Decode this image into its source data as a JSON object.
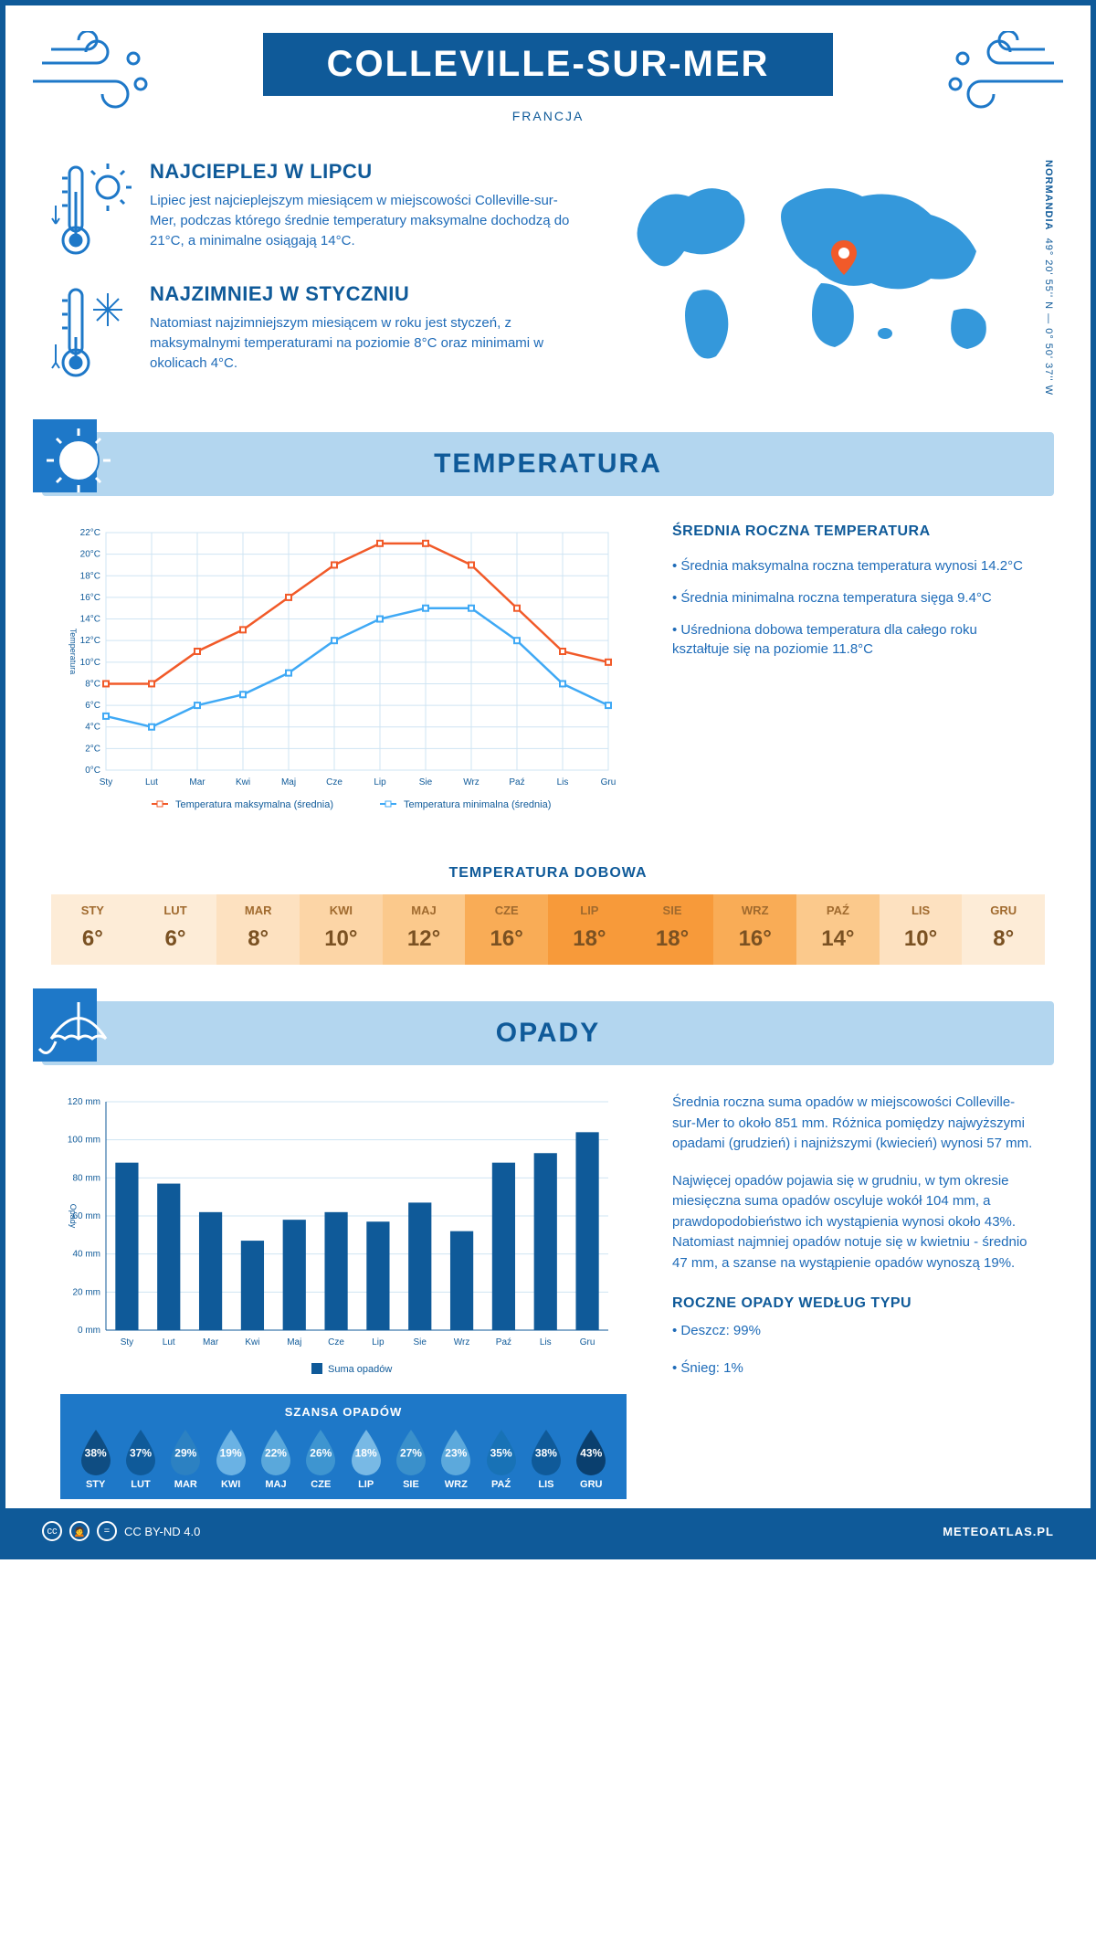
{
  "header": {
    "title": "COLLEVILLE-SUR-MER",
    "subtitle": "FRANCJA"
  },
  "location": {
    "coords": "49° 20' 55'' N — 0° 50' 37'' W",
    "region": "NORMANDIA"
  },
  "intro_hot": {
    "title": "NAJCIEPLEJ W LIPCU",
    "body": "Lipiec jest najcieplejszym miesiącem w miejscowości Colleville-sur-Mer, podczas którego średnie temperatury maksymalne dochodzą do 21°C, a minimalne osiągają 14°C."
  },
  "intro_cold": {
    "title": "NAJZIMNIEJ W STYCZNIU",
    "body": "Natomiast najzimniejszym miesiącem w roku jest styczeń, z maksymalnymi temperaturami na poziomie 8°C oraz minimami w okolicach 4°C."
  },
  "temp_section_title": "TEMPERATURA",
  "temp_chart": {
    "ylabel": "Temperatura",
    "months": [
      "Sty",
      "Lut",
      "Mar",
      "Kwi",
      "Maj",
      "Cze",
      "Lip",
      "Sie",
      "Wrz",
      "Paź",
      "Lis",
      "Gru"
    ],
    "max_vals": [
      8,
      8,
      11,
      13,
      16,
      19,
      21,
      21,
      19,
      15,
      11,
      10
    ],
    "min_vals": [
      5,
      4,
      6,
      7,
      9,
      12,
      14,
      15,
      15,
      12,
      8,
      6
    ],
    "max_color": "#f15a29",
    "min_color": "#3fa9f5",
    "y_min": 0,
    "y_max": 22,
    "y_step": 2,
    "grid_color": "#cfe4f3",
    "legend_max": "Temperatura maksymalna (średnia)",
    "legend_min": "Temperatura minimalna (średnia)"
  },
  "temp_info": {
    "heading": "ŚREDNIA ROCZNA TEMPERATURA",
    "b1": "• Średnia maksymalna roczna temperatura wynosi 14.2°C",
    "b2": "• Średnia minimalna roczna temperatura sięga 9.4°C",
    "b3": "• Uśredniona dobowa temperatura dla całego roku kształtuje się na poziomie 11.8°C"
  },
  "daily_title": "TEMPERATURA DOBOWA",
  "daily": {
    "months": [
      "STY",
      "LUT",
      "MAR",
      "KWI",
      "MAJ",
      "CZE",
      "LIP",
      "SIE",
      "WRZ",
      "PAŹ",
      "LIS",
      "GRU"
    ],
    "vals": [
      "6°",
      "6°",
      "8°",
      "10°",
      "12°",
      "16°",
      "18°",
      "18°",
      "16°",
      "14°",
      "10°",
      "8°"
    ],
    "colors": [
      "#fdecd7",
      "#fdecd7",
      "#fde1c0",
      "#fcd5a6",
      "#fbc98c",
      "#f9ac56",
      "#f79a3a",
      "#f79a3a",
      "#f9ac56",
      "#fbc98c",
      "#fde1c0",
      "#fdecd7"
    ]
  },
  "opady_title": "OPADY",
  "opady_chart": {
    "ylabel": "Opady",
    "months": [
      "Sty",
      "Lut",
      "Mar",
      "Kwi",
      "Maj",
      "Cze",
      "Lip",
      "Sie",
      "Wrz",
      "Paź",
      "Lis",
      "Gru"
    ],
    "vals": [
      88,
      77,
      62,
      47,
      58,
      62,
      57,
      67,
      52,
      88,
      93,
      104
    ],
    "bar_color": "#0f5a99",
    "y_min": 0,
    "y_max": 120,
    "y_step": 20,
    "grid_color": "#cfe4f3",
    "legend": "Suma opadów"
  },
  "opady_info": {
    "p1": "Średnia roczna suma opadów w miejscowości Colleville-sur-Mer to około 851 mm. Różnica pomiędzy najwyższymi opadami (grudzień) i najniższymi (kwiecień) wynosi 57 mm.",
    "p2": "Najwięcej opadów pojawia się w grudniu, w tym okresie miesięczna suma opadów oscyluje wokół 104 mm, a prawdopodobieństwo ich wystąpienia wynosi około 43%. Natomiast najmniej opadów notuje się w kwietniu - średnio 47 mm, a szanse na wystąpienie opadów wynoszą 19%.",
    "type_h": "ROCZNE OPADY WEDŁUG TYPU",
    "t1": "• Deszcz: 99%",
    "t2": "• Śnieg: 1%"
  },
  "chance": {
    "title": "SZANSA OPADÓW",
    "months": [
      "STY",
      "LUT",
      "MAR",
      "KWI",
      "MAJ",
      "CZE",
      "LIP",
      "SIE",
      "WRZ",
      "PAŹ",
      "LIS",
      "GRU"
    ],
    "pct": [
      "38%",
      "37%",
      "29%",
      "19%",
      "22%",
      "26%",
      "18%",
      "27%",
      "23%",
      "35%",
      "38%",
      "43%"
    ],
    "colors": [
      "#0f4d82",
      "#0f5a99",
      "#2c81c2",
      "#6ab2e4",
      "#5aa8db",
      "#3e95d0",
      "#78b9e5",
      "#3a90cb",
      "#5ca9dc",
      "#1872b6",
      "#0f5a99",
      "#0a3f6e"
    ]
  },
  "footer": {
    "license": "CC BY-ND 4.0",
    "site": "METEOATLAS.PL"
  }
}
